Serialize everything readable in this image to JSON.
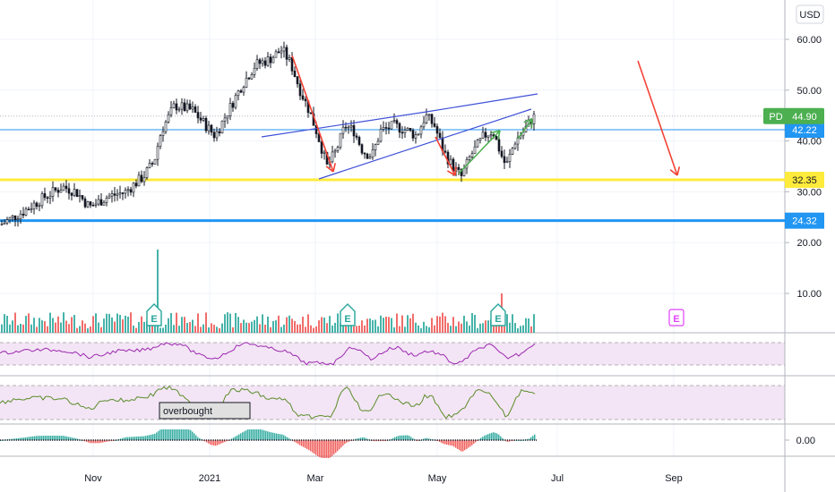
{
  "chart_data": {
    "type": "candlestick",
    "instrument": "PD",
    "currency": "USD",
    "last_price": "44.90",
    "y_ticks": [
      "60.00",
      "50.00",
      "40.00",
      "30.00",
      "20.00",
      "10.00"
    ],
    "ylim": [
      5,
      65
    ],
    "x_ticks": [
      "Nov",
      "2021",
      "Mar",
      "May",
      "Jul",
      "Sep"
    ],
    "horizontal_levels": [
      {
        "value": 42.22,
        "label": "42.22",
        "color": "#2196f3"
      },
      {
        "value": 32.35,
        "label": "32.35",
        "color": "#ffeb3b"
      },
      {
        "value": 24.32,
        "label": "24.32",
        "color": "#2196f3"
      }
    ],
    "price_path": [
      [
        0,
        23.5
      ],
      [
        25,
        26
      ],
      [
        50,
        29
      ],
      [
        70,
        31
      ],
      [
        85,
        30
      ],
      [
        100,
        27
      ],
      [
        120,
        29
      ],
      [
        140,
        30
      ],
      [
        160,
        33
      ],
      [
        172,
        36
      ],
      [
        180,
        42
      ],
      [
        195,
        47
      ],
      [
        215,
        46
      ],
      [
        230,
        43
      ],
      [
        240,
        41
      ],
      [
        255,
        46
      ],
      [
        270,
        51
      ],
      [
        285,
        55
      ],
      [
        300,
        56
      ],
      [
        315,
        58
      ],
      [
        325,
        55
      ],
      [
        335,
        50
      ],
      [
        345,
        46
      ],
      [
        355,
        41
      ],
      [
        365,
        35
      ],
      [
        375,
        38
      ],
      [
        385,
        43
      ],
      [
        395,
        42
      ],
      [
        405,
        38
      ],
      [
        415,
        37
      ],
      [
        425,
        42
      ],
      [
        440,
        43
      ],
      [
        455,
        42
      ],
      [
        465,
        41
      ],
      [
        475,
        45
      ],
      [
        485,
        43
      ],
      [
        495,
        38
      ],
      [
        505,
        35
      ],
      [
        515,
        33
      ],
      [
        525,
        37
      ],
      [
        540,
        41
      ],
      [
        550,
        42
      ],
      [
        560,
        37
      ],
      [
        565,
        35
      ],
      [
        575,
        40
      ],
      [
        585,
        42
      ],
      [
        592,
        44
      ],
      [
        597,
        44.9
      ]
    ],
    "earnings_markers": [
      {
        "label": "E",
        "x": 172,
        "reported": true
      },
      {
        "label": "E",
        "x": 388,
        "reported": true
      },
      {
        "label": "E",
        "x": 556,
        "reported": true
      },
      {
        "label": "E",
        "x": 755,
        "reported": false
      }
    ],
    "oscillator_zero": "0.00",
    "annotation": "overbought",
    "colors": {
      "up": "#26a69a",
      "down": "#ef5350",
      "pattern": "#3f51d8",
      "arrow_red": "#f44336",
      "arrow_green": "#4caf50",
      "rsi_line": "#9c27b0",
      "stoch_line": "#5b8c2a",
      "band_fill": "#f3e5f5",
      "last_price_bg": "#4caf50",
      "earnings": "#26a69a",
      "earnings_future": "#e040fb"
    }
  }
}
